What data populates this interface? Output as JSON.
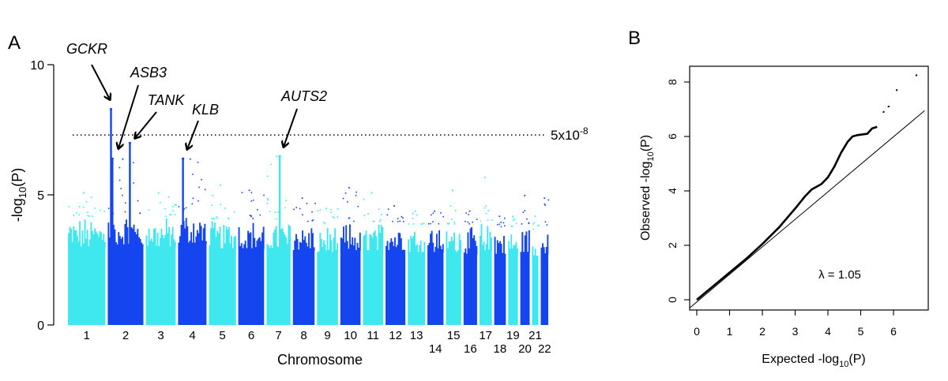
{
  "panels": {
    "a": {
      "label": "A"
    },
    "b": {
      "label": "B"
    }
  },
  "colors": {
    "light": "#3fe8ee",
    "dark": "#1545ee",
    "axis": "#000000"
  },
  "chart_data": [
    {
      "type": "scatter",
      "subtype": "manhattan",
      "title": "",
      "xlabel": "Chromosome",
      "ylabel": "-log10(P)",
      "ylim": [
        0,
        10
      ],
      "yticks": [
        0,
        5,
        10
      ],
      "threshold": {
        "value": 7.3,
        "label": "5x10",
        "label_exp": "-8"
      },
      "chromosomes": [
        {
          "name": "1",
          "label": "1",
          "span": 1.0,
          "peak": 5.1,
          "base": 4.2,
          "high_row": true
        },
        {
          "name": "2",
          "label": "2",
          "span": 0.95,
          "peak": 6.4,
          "base": 4.3,
          "high_row": true
        },
        {
          "name": "3",
          "label": "3",
          "span": 0.8,
          "peak": 5.1,
          "base": 4.2,
          "high_row": true
        },
        {
          "name": "4",
          "label": "4",
          "span": 0.76,
          "peak": 6.4,
          "base": 4.4,
          "high_row": true
        },
        {
          "name": "5",
          "label": "5",
          "span": 0.72,
          "peak": 5.4,
          "base": 4.1,
          "high_row": true
        },
        {
          "name": "6",
          "label": "6",
          "span": 0.69,
          "peak": 5.2,
          "base": 4.1,
          "high_row": true
        },
        {
          "name": "7",
          "label": "7",
          "span": 0.64,
          "peak": 6.5,
          "base": 4.1,
          "high_row": true
        },
        {
          "name": "8",
          "label": "8",
          "span": 0.58,
          "peak": 4.9,
          "base": 4.0,
          "high_row": true
        },
        {
          "name": "9",
          "label": "9",
          "span": 0.56,
          "peak": 4.5,
          "base": 3.9,
          "high_row": true
        },
        {
          "name": "10",
          "label": "10",
          "span": 0.54,
          "peak": 5.3,
          "base": 4.0,
          "high_row": true
        },
        {
          "name": "11",
          "label": "11",
          "span": 0.54,
          "peak": 5.1,
          "base": 4.0,
          "high_row": true
        },
        {
          "name": "12",
          "label": "12",
          "span": 0.53,
          "peak": 4.6,
          "base": 4.0,
          "high_row": true
        },
        {
          "name": "13",
          "label": "13",
          "span": 0.46,
          "peak": 4.4,
          "base": 3.9,
          "high_row": true
        },
        {
          "name": "14",
          "label": "14",
          "span": 0.43,
          "peak": 4.4,
          "base": 3.9,
          "high_row": false
        },
        {
          "name": "15",
          "label": "15",
          "span": 0.41,
          "peak": 5.2,
          "base": 3.9,
          "high_row": true
        },
        {
          "name": "16",
          "label": "16",
          "span": 0.36,
          "peak": 4.4,
          "base": 3.8,
          "high_row": false
        },
        {
          "name": "17",
          "label": "17",
          "span": 0.33,
          "peak": 5.7,
          "base": 4.0,
          "high_row": true
        },
        {
          "name": "18",
          "label": "18",
          "span": 0.31,
          "peak": 4.2,
          "base": 3.8,
          "high_row": false
        },
        {
          "name": "19",
          "label": "19",
          "span": 0.26,
          "peak": 4.2,
          "base": 3.8,
          "high_row": true
        },
        {
          "name": "20",
          "label": "20",
          "span": 0.25,
          "peak": 5.0,
          "base": 3.9,
          "high_row": false
        },
        {
          "name": "21",
          "label": "21",
          "span": 0.17,
          "peak": 4.2,
          "base": 3.7,
          "high_row": true
        },
        {
          "name": "22",
          "label": "22",
          "span": 0.2,
          "peak": 4.9,
          "base": 3.8,
          "high_row": false
        }
      ],
      "hits": [
        {
          "gene": "GCKR",
          "chrom": "2",
          "pos": 0.09,
          "value": 8.3
        },
        {
          "gene": "ASB3",
          "chrom": "2",
          "pos": 0.13,
          "value": 6.4
        },
        {
          "gene": "TANK",
          "chrom": "2",
          "pos": 0.62,
          "value": 7.0
        },
        {
          "gene": "KLB",
          "chrom": "4",
          "pos": 0.17,
          "value": 6.4
        },
        {
          "gene": "AUTS2",
          "chrom": "7",
          "pos": 0.55,
          "value": 6.5
        }
      ]
    },
    {
      "type": "line",
      "subtype": "qq",
      "xlabel": "Expected -log10(P)",
      "ylabel": "Observed -log10(P)",
      "xlim": [
        0,
        7
      ],
      "ylim": [
        0,
        8.4
      ],
      "xticks": [
        0,
        1,
        2,
        3,
        4,
        5,
        6
      ],
      "yticks": [
        0,
        2,
        4,
        6,
        8
      ],
      "lambda_label": "λ = 1.05",
      "series": [
        {
          "name": "observed",
          "points": [
            [
              0,
              0
            ],
            [
              0.5,
              0.5
            ],
            [
              1,
              1.0
            ],
            [
              1.5,
              1.5
            ],
            [
              2,
              2.05
            ],
            [
              2.5,
              2.65
            ],
            [
              3,
              3.35
            ],
            [
              3.3,
              3.8
            ],
            [
              3.5,
              4.05
            ],
            [
              3.8,
              4.25
            ],
            [
              4.0,
              4.5
            ],
            [
              4.2,
              4.9
            ],
            [
              4.4,
              5.4
            ],
            [
              4.6,
              5.8
            ],
            [
              4.75,
              6.0
            ],
            [
              4.9,
              6.05
            ],
            [
              5.2,
              6.1
            ],
            [
              5.35,
              6.3
            ],
            [
              5.5,
              6.35
            ]
          ]
        },
        {
          "name": "sparse_tail",
          "points": [
            [
              5.7,
              6.9
            ],
            [
              5.85,
              7.1
            ],
            [
              6.1,
              7.7
            ],
            [
              6.7,
              8.25
            ]
          ]
        },
        {
          "name": "identity",
          "points": [
            [
              -0.3,
              -0.3
            ],
            [
              7,
              7
            ]
          ]
        }
      ]
    }
  ]
}
